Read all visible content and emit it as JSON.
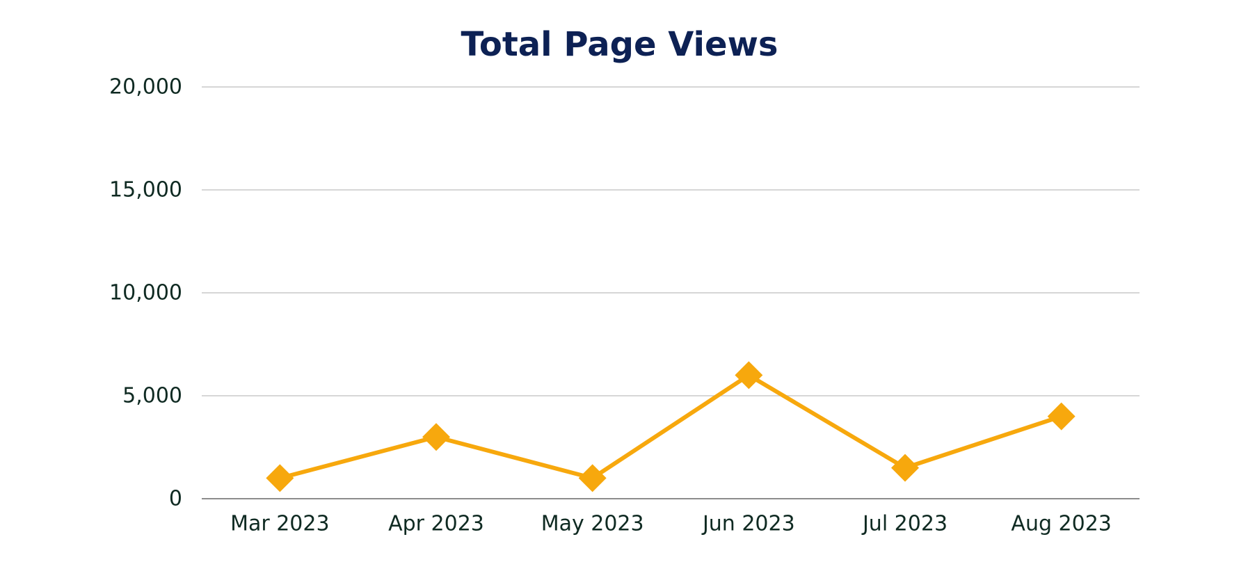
{
  "chart_data": {
    "type": "line",
    "title": "Total Page Views",
    "xlabel": "",
    "ylabel": "",
    "categories": [
      "Mar 2023",
      "Apr 2023",
      "May 2023",
      "Jun 2023",
      "Jul 2023",
      "Aug 2023"
    ],
    "series": [
      {
        "values": [
          1000,
          3000,
          1000,
          6000,
          1500,
          4000
        ]
      }
    ],
    "ylim": [
      0,
      20000
    ],
    "yticks": [
      0,
      5000,
      10000,
      15000,
      20000
    ],
    "ytick_labels": [
      "0",
      "5,000",
      "10,000",
      "15,000",
      "20,000"
    ],
    "grid": true,
    "legend": "none",
    "marker": "diamond",
    "colors": {
      "series": "#f7a80d",
      "title": "#0d2154",
      "text": "#0f2a22",
      "grid": "#c8c8c8",
      "axis": "#8c8c8c"
    }
  }
}
